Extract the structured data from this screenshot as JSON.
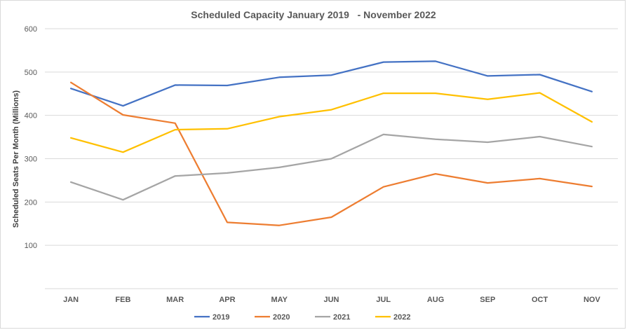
{
  "chart_data": {
    "type": "line",
    "title": "Scheduled Capacity January 2019   - November 2022",
    "xlabel": "",
    "ylabel": "Scheduled Seats Per Month (Millions)",
    "ylim": [
      0,
      600
    ],
    "yticks": [
      100,
      200,
      300,
      400,
      500,
      600
    ],
    "grid": true,
    "legend_position": "bottom",
    "categories": [
      "JAN",
      "FEB",
      "MAR",
      "APR",
      "MAY",
      "JUN",
      "JUL",
      "AUG",
      "SEP",
      "OCT",
      "NOV"
    ],
    "series": [
      {
        "name": "2019",
        "color": "#4472c4",
        "values": [
          462,
          422,
          470,
          469,
          488,
          493,
          523,
          525,
          491,
          494,
          455
        ]
      },
      {
        "name": "2020",
        "color": "#ed7d31",
        "values": [
          476,
          401,
          382,
          153,
          146,
          165,
          235,
          265,
          244,
          254,
          236
        ]
      },
      {
        "name": "2021",
        "color": "#a5a5a5",
        "values": [
          246,
          205,
          260,
          267,
          280,
          300,
          356,
          345,
          338,
          351,
          328
        ]
      },
      {
        "name": "2022",
        "color": "#ffc000",
        "values": [
          348,
          315,
          367,
          369,
          397,
          413,
          451,
          451,
          437,
          452,
          385
        ]
      }
    ]
  }
}
